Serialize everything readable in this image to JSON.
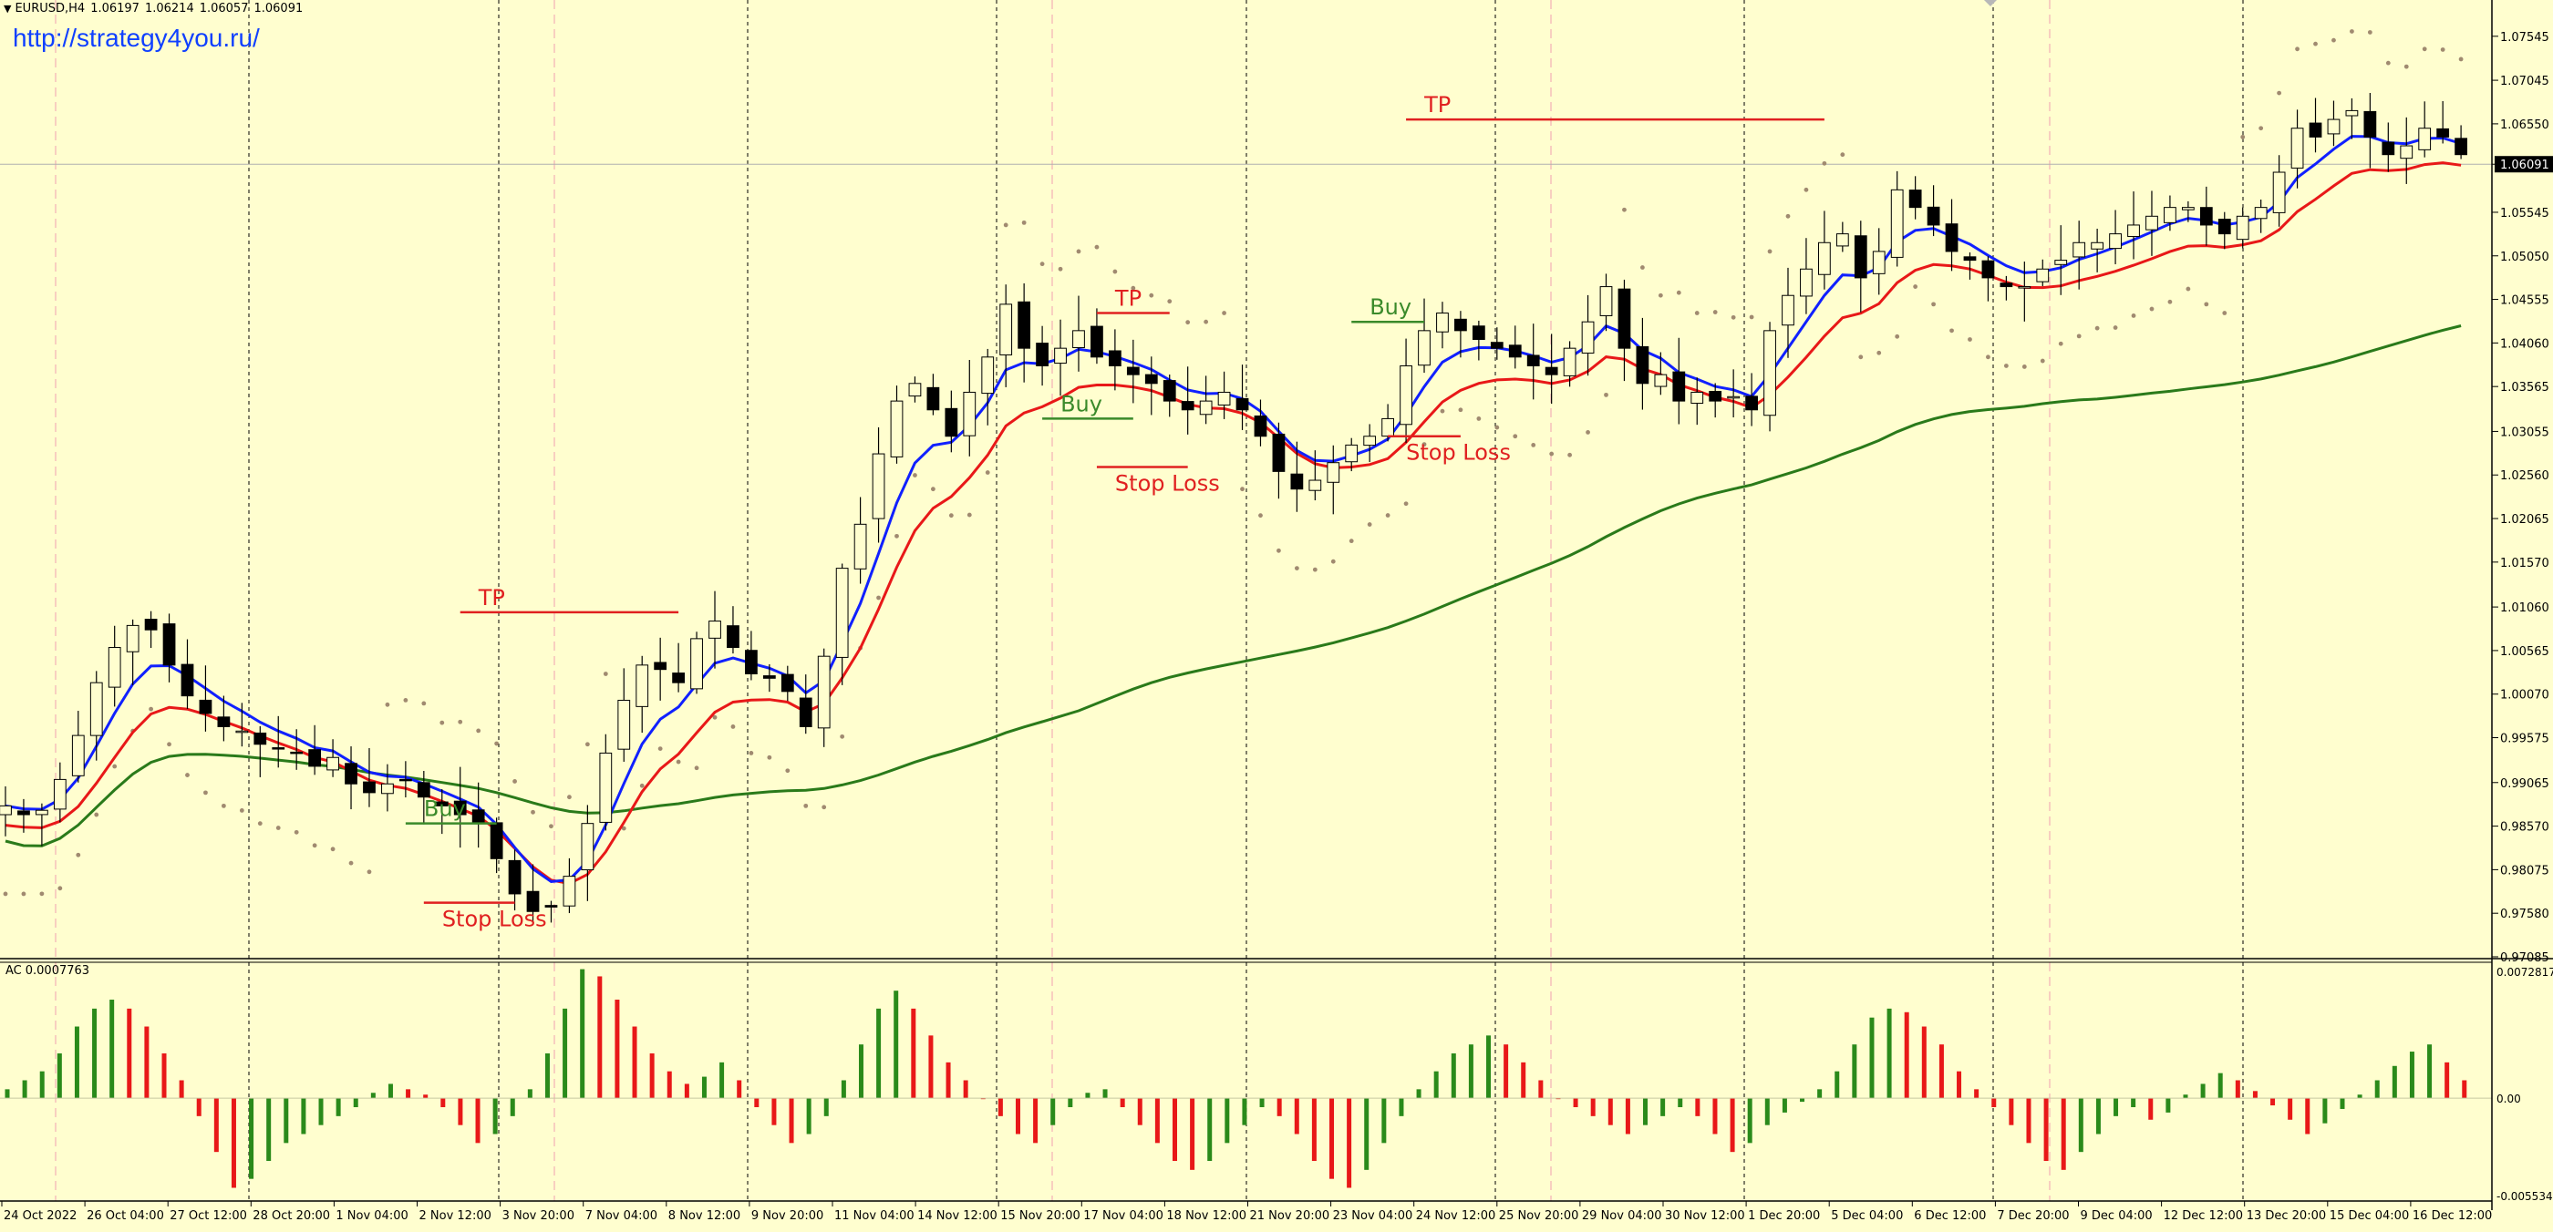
{
  "header": {
    "symbol": "EURUSD,H4",
    "open": "1.06197",
    "high": "1.06214",
    "low": "1.06057",
    "close": "1.06091",
    "link": "http://strategy4you.ru/"
  },
  "indicator": {
    "label": "AC",
    "value": "0.0007763"
  },
  "colors": {
    "background": "#fffecf",
    "bull_candle": "#fffecf",
    "bear_candle": "#000000",
    "fast_ma": "#1020ff",
    "slow_ma": "#e81818",
    "long_ma": "#2a7a1a",
    "sar": "#a08a70",
    "ac_up": "#2a8a1a",
    "ac_down": "#e81818",
    "annotation_red": "#e02020",
    "annotation_green": "#3a8a2a"
  },
  "chart_data": {
    "type": "candlestick",
    "price_axis": {
      "range": [
        0.97085,
        1.0775
      ],
      "ticks": [
        "1.07545",
        "1.07045",
        "1.06550",
        "1.06091",
        "1.05545",
        "1.05050",
        "1.04555",
        "1.04060",
        "1.03565",
        "1.03055",
        "1.02560",
        "1.02065",
        "1.01570",
        "1.01060",
        "1.00565",
        "1.00070",
        "0.99575",
        "0.99065",
        "0.98570",
        "0.98075",
        "0.97580",
        "0.97085"
      ],
      "current_price": "1.06091"
    },
    "time_axis": {
      "labels": [
        "24 Oct 2022",
        "26 Oct 04:00",
        "27 Oct 12:00",
        "28 Oct 20:00",
        "1 Nov 04:00",
        "2 Nov 12:00",
        "3 Nov 20:00",
        "7 Nov 04:00",
        "8 Nov 12:00",
        "9 Nov 20:00",
        "11 Nov 04:00",
        "14 Nov 12:00",
        "15 Nov 20:00",
        "17 Nov 04:00",
        "18 Nov 12:00",
        "21 Nov 20:00",
        "23 Nov 04:00",
        "24 Nov 12:00",
        "25 Nov 20:00",
        "29 Nov 04:00",
        "30 Nov 12:00",
        "1 Dec 20:00",
        "5 Dec 04:00",
        "6 Dec 12:00",
        "7 Dec 20:00",
        "9 Dec 04:00",
        "12 Dec 12:00",
        "13 Dec 20:00",
        "15 Dec 04:00",
        "16 Dec 12:00"
      ]
    },
    "close_path": [
      0.988,
      0.987,
      0.9875,
      0.991,
      0.996,
      1.002,
      1.006,
      1.0085,
      1.008,
      1.004,
      1.0005,
      0.9985,
      0.997,
      0.9965,
      0.995,
      0.9945,
      0.994,
      0.9925,
      0.9935,
      0.9905,
      0.9895,
      0.9905,
      0.991,
      0.989,
      0.988,
      0.987,
      0.986,
      0.982,
      0.978,
      0.976,
      0.9765,
      0.98,
      0.986,
      0.994,
      1.0,
      1.004,
      1.0035,
      1.002,
      1.007,
      1.009,
      1.006,
      1.003,
      1.0025,
      1.001,
      0.997,
      1.005,
      1.015,
      1.02,
      1.028,
      1.034,
      1.036,
      1.033,
      1.03,
      1.035,
      1.039,
      1.045,
      1.04,
      1.038,
      1.04,
      1.042,
      1.039,
      1.038,
      1.037,
      1.036,
      1.034,
      1.033,
      1.034,
      1.035,
      1.033,
      1.03,
      1.026,
      1.024,
      1.025,
      1.027,
      1.029,
      1.03,
      1.032,
      1.038,
      1.042,
      1.044,
      1.042,
      1.041,
      1.04,
      1.039,
      1.038,
      1.037,
      1.04,
      1.043,
      1.047,
      1.04,
      1.036,
      1.037,
      1.034,
      1.035,
      1.034,
      1.0345,
      1.033,
      1.042,
      1.046,
      1.049,
      1.052,
      1.053,
      1.048,
      1.051,
      1.058,
      1.056,
      1.054,
      1.051,
      1.05,
      1.048,
      1.047,
      1.047,
      1.049,
      1.05,
      1.052,
      1.052,
      1.053,
      1.054,
      1.055,
      1.056,
      1.056,
      1.054,
      1.053,
      1.055,
      1.056,
      1.06,
      1.065,
      1.064,
      1.066,
      1.067,
      1.064,
      1.062,
      1.063,
      1.065,
      1.064,
      1.062
    ],
    "candles_count": 140,
    "series": [
      {
        "name": "MA fast",
        "color_key": "fast_ma"
      },
      {
        "name": "MA slow",
        "color_key": "slow_ma"
      },
      {
        "name": "MA long",
        "color_key": "long_ma"
      },
      {
        "name": "Parabolic SAR",
        "color_key": "sar"
      }
    ],
    "annotations": [
      {
        "text": "TP",
        "price": 1.01,
        "from_bar": 25,
        "to_bar": 37,
        "color_key": "annotation_red"
      },
      {
        "text": "Stop Loss",
        "price": 0.977,
        "from_bar": 23,
        "to_bar": 28,
        "color_key": "annotation_red"
      },
      {
        "text": "Buy",
        "price": 0.986,
        "from_bar": 22,
        "to_bar": 27,
        "color_key": "annotation_green"
      },
      {
        "text": "TP",
        "price": 1.044,
        "from_bar": 60,
        "to_bar": 64,
        "color_key": "annotation_red"
      },
      {
        "text": "Buy",
        "price": 1.032,
        "from_bar": 57,
        "to_bar": 62,
        "color_key": "annotation_green"
      },
      {
        "text": "Stop Loss",
        "price": 1.0265,
        "from_bar": 60,
        "to_bar": 65,
        "color_key": "annotation_red"
      },
      {
        "text": "TP",
        "price": 1.066,
        "from_bar": 77,
        "to_bar": 100,
        "color_key": "annotation_red"
      },
      {
        "text": "Buy",
        "price": 1.043,
        "from_bar": 74,
        "to_bar": 78,
        "color_key": "annotation_green"
      },
      {
        "text": "Stop Loss",
        "price": 1.03,
        "from_bar": 76,
        "to_bar": 80,
        "color_key": "annotation_red"
      }
    ],
    "ac_panel": {
      "range": [
        -0.005534,
        0.007281
      ],
      "ticks": [
        "0.0072817",
        "0.00",
        "-0.0055347"
      ],
      "values": [
        0.0005,
        0.001,
        0.0015,
        0.0025,
        0.004,
        0.005,
        0.0055,
        0.005,
        0.004,
        0.0025,
        0.001,
        -0.001,
        -0.003,
        -0.005,
        -0.0045,
        -0.0035,
        -0.0025,
        -0.002,
        -0.0015,
        -0.001,
        -0.0005,
        0.0003,
        0.0008,
        0.0005,
        0.0002,
        -0.0005,
        -0.0015,
        -0.0025,
        -0.002,
        -0.001,
        0.0005,
        0.0025,
        0.005,
        0.0072,
        0.0068,
        0.0055,
        0.004,
        0.0025,
        0.0015,
        0.0008,
        0.0012,
        0.002,
        0.001,
        -0.0005,
        -0.0015,
        -0.0025,
        -0.002,
        -0.001,
        0.001,
        0.003,
        0.005,
        0.006,
        0.005,
        0.0035,
        0.002,
        0.001,
        0.0,
        -0.001,
        -0.002,
        -0.0025,
        -0.0015,
        -0.0005,
        0.0003,
        0.0005,
        -0.0005,
        -0.0015,
        -0.0025,
        -0.0035,
        -0.004,
        -0.0035,
        -0.0025,
        -0.0015,
        -0.0005,
        -0.001,
        -0.002,
        -0.0035,
        -0.0045,
        -0.005,
        -0.004,
        -0.0025,
        -0.001,
        0.0005,
        0.0015,
        0.0025,
        0.003,
        0.0035,
        0.003,
        0.002,
        0.001,
        0.0,
        -0.0005,
        -0.001,
        -0.0015,
        -0.002,
        -0.0015,
        -0.001,
        -0.0005,
        -0.001,
        -0.002,
        -0.003,
        -0.0025,
        -0.0015,
        -0.0008,
        -0.0002,
        0.0005,
        0.0015,
        0.003,
        0.0045,
        0.005,
        0.0048,
        0.004,
        0.003,
        0.0015,
        0.0005,
        -0.0005,
        -0.0015,
        -0.0025,
        -0.0035,
        -0.004,
        -0.003,
        -0.002,
        -0.001,
        -0.0005,
        -0.0012,
        -0.0008,
        0.0002,
        0.0008,
        0.0014,
        0.001,
        0.0004,
        -0.0004,
        -0.0012,
        -0.002,
        -0.0014,
        -0.0006,
        0.0002,
        0.001,
        0.0018,
        0.0026,
        0.003,
        0.002,
        0.001
      ]
    }
  }
}
